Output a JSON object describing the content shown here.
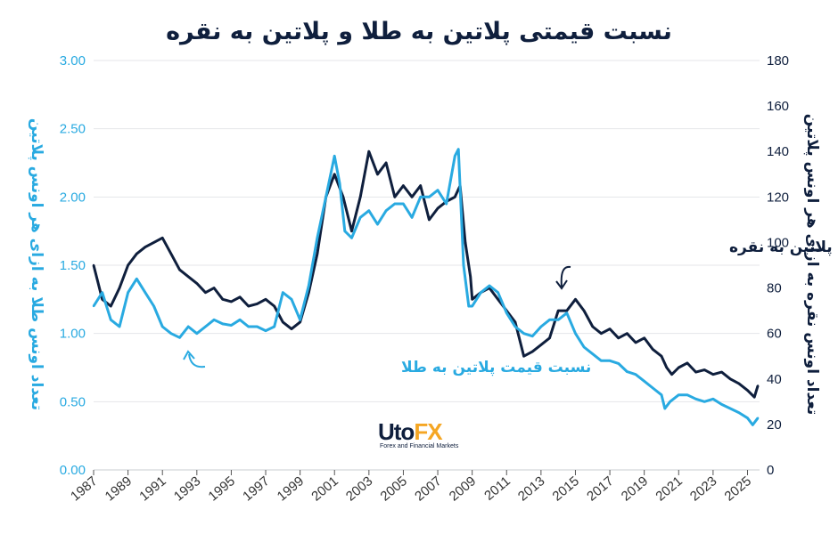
{
  "title": "نسبت قیمتی پلاتین به طلا و پلاتین به نقره",
  "logo": {
    "brand_main": "Uto",
    "brand_accent": "FX",
    "tagline": "Forex and Financial Markets"
  },
  "chart_data": {
    "type": "line",
    "title": "نسبت قیمتی پلاتین به طلا و پلاتین به نقره",
    "x_ticks": [
      "1987",
      "1989",
      "1991",
      "1993",
      "1995",
      "1997",
      "1999",
      "2001",
      "2003",
      "2005",
      "2007",
      "2009",
      "2011",
      "2013",
      "2015",
      "2017",
      "2019",
      "2021",
      "2023",
      "2025"
    ],
    "xlim": [
      1987,
      2025.7
    ],
    "y_left": {
      "label": "تعداد اونس طلا به ازای هر اونس پلاتین",
      "ticks": [
        "0.00",
        "0.50",
        "1.00",
        "1.50",
        "2.00",
        "2.50",
        "3.00"
      ],
      "ylim": [
        0,
        3
      ],
      "color": "#29aae1"
    },
    "y_right": {
      "label": "تعداد اونس نقره به ازای هر اونس پلاتین",
      "ticks": [
        "0",
        "20",
        "40",
        "60",
        "80",
        "100",
        "120",
        "140",
        "160",
        "180"
      ],
      "ylim": [
        0,
        180
      ],
      "color": "#0f1f3d"
    },
    "grid": true,
    "series": [
      {
        "name": "نسبت قیمت پلاتین به طلا",
        "axis": "left",
        "color": "#29aae1",
        "x": [
          1987,
          1987.5,
          1988,
          1988.5,
          1989,
          1989.5,
          1990,
          1990.5,
          1991,
          1991.5,
          1992,
          1992.5,
          1993,
          1993.5,
          1994,
          1994.5,
          1995,
          1995.5,
          1996,
          1996.5,
          1997,
          1997.5,
          1998,
          1998.5,
          1999,
          1999.5,
          2000,
          2000.5,
          2001,
          2001.3,
          2001.6,
          2002,
          2002.5,
          2003,
          2003.5,
          2004,
          2004.5,
          2005,
          2005.5,
          2006,
          2006.5,
          2007,
          2007.5,
          2008,
          2008.2,
          2008.5,
          2008.8,
          2009,
          2009.5,
          2010,
          2010.5,
          2011,
          2011.5,
          2012,
          2012.5,
          2013,
          2013.5,
          2014,
          2014.5,
          2015,
          2015.5,
          2016,
          2016.5,
          2017,
          2017.5,
          2018,
          2018.5,
          2019,
          2019.5,
          2020,
          2020.2,
          2020.5,
          2021,
          2021.5,
          2022,
          2022.5,
          2023,
          2023.5,
          2024,
          2024.5,
          2025,
          2025.3,
          2025.6
        ],
        "values": [
          1.2,
          1.3,
          1.1,
          1.05,
          1.3,
          1.4,
          1.3,
          1.2,
          1.05,
          1.0,
          0.97,
          1.05,
          1.0,
          1.05,
          1.1,
          1.07,
          1.06,
          1.1,
          1.05,
          1.05,
          1.02,
          1.05,
          1.3,
          1.25,
          1.1,
          1.35,
          1.7,
          2.0,
          2.3,
          2.1,
          1.75,
          1.7,
          1.85,
          1.9,
          1.8,
          1.9,
          1.95,
          1.95,
          1.85,
          2.0,
          2.0,
          2.05,
          1.95,
          2.3,
          2.35,
          1.5,
          1.2,
          1.2,
          1.3,
          1.35,
          1.3,
          1.15,
          1.05,
          1.0,
          0.98,
          1.05,
          1.1,
          1.1,
          1.15,
          1.0,
          0.9,
          0.85,
          0.8,
          0.8,
          0.78,
          0.72,
          0.7,
          0.65,
          0.6,
          0.55,
          0.45,
          0.5,
          0.55,
          0.55,
          0.52,
          0.5,
          0.52,
          0.48,
          0.45,
          0.42,
          0.38,
          0.33,
          0.38
        ]
      },
      {
        "name": "نسبت قیمت پلاتین به نقره",
        "axis": "right",
        "color": "#0f1f3d",
        "x": [
          1987,
          1987.5,
          1988,
          1988.5,
          1989,
          1989.5,
          1990,
          1990.5,
          1991,
          1991.5,
          1992,
          1992.5,
          1993,
          1993.5,
          1994,
          1994.5,
          1995,
          1995.5,
          1996,
          1996.5,
          1997,
          1997.5,
          1998,
          1998.5,
          1999,
          1999.5,
          2000,
          2000.5,
          2001,
          2001.5,
          2002,
          2002.5,
          2003,
          2003.5,
          2004,
          2004.5,
          2005,
          2005.5,
          2006,
          2006.5,
          2007,
          2007.5,
          2008,
          2008.3,
          2008.6,
          2008.9,
          2009,
          2009.5,
          2010,
          2010.5,
          2011,
          2011.5,
          2012,
          2012.5,
          2013,
          2013.5,
          2014,
          2014.5,
          2015,
          2015.5,
          2016,
          2016.5,
          2017,
          2017.5,
          2018,
          2018.5,
          2019,
          2019.5,
          2020,
          2020.3,
          2020.6,
          2021,
          2021.5,
          2022,
          2022.5,
          2023,
          2023.5,
          2024,
          2024.5,
          2025,
          2025.4,
          2025.6
        ],
        "values": [
          90,
          75,
          72,
          80,
          90,
          95,
          98,
          100,
          102,
          95,
          88,
          85,
          82,
          78,
          80,
          75,
          74,
          76,
          72,
          73,
          75,
          72,
          65,
          62,
          65,
          78,
          95,
          120,
          130,
          120,
          105,
          120,
          140,
          130,
          135,
          120,
          125,
          120,
          125,
          110,
          115,
          118,
          120,
          125,
          100,
          85,
          75,
          78,
          80,
          75,
          70,
          65,
          50,
          52,
          55,
          58,
          70,
          70,
          75,
          70,
          63,
          60,
          62,
          58,
          60,
          56,
          58,
          53,
          50,
          45,
          42,
          45,
          47,
          43,
          44,
          42,
          43,
          40,
          38,
          35,
          32,
          37
        ]
      }
    ]
  },
  "annotations": {
    "gold": "نسبت قیمت پلاتین به طلا",
    "silver": "نسبت قیمت پلاتین به نقره"
  },
  "colors": {
    "gold_series": "#29aae1",
    "silver_series": "#0f1f3d",
    "grid": "#e4e6ea",
    "logo_accent": "#f5a623"
  }
}
